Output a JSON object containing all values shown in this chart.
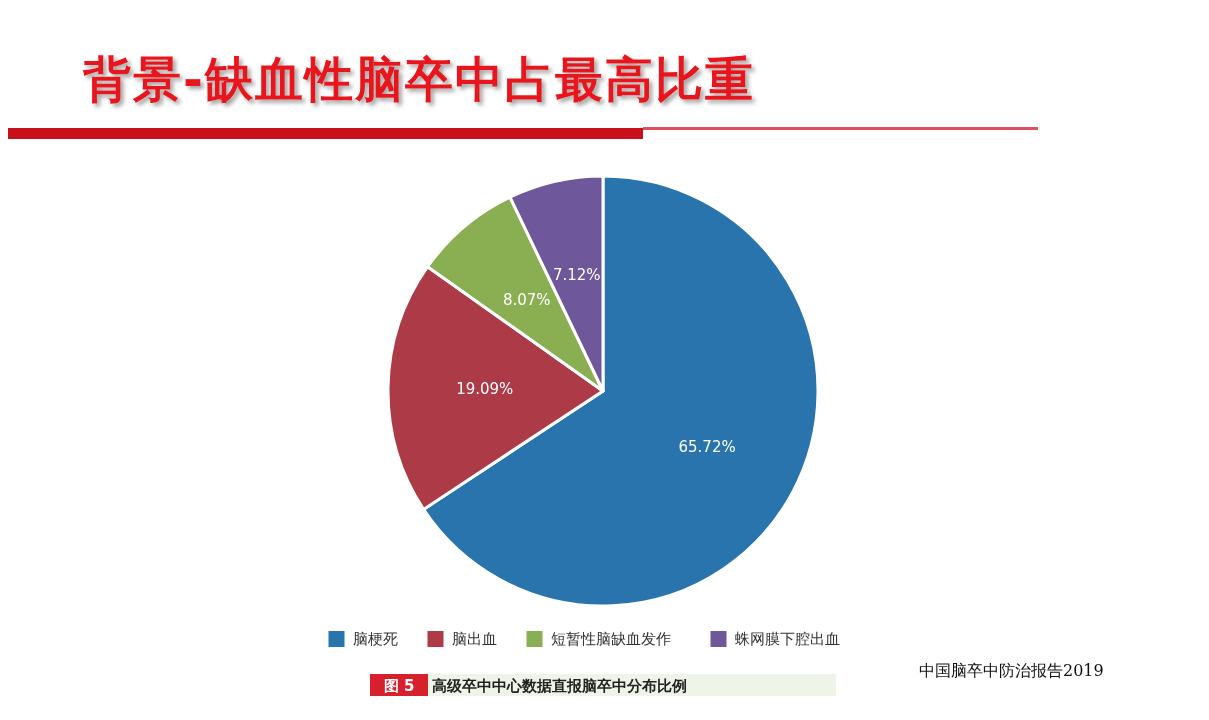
{
  "chart_data": {
    "type": "pie",
    "title": "背景-缺血性脑卒中占最高比重",
    "categories": [
      "脑梗死",
      "脑出血",
      "短暂性脑缺血发作",
      "蛛网膜下腔出血"
    ],
    "values": [
      65.72,
      19.09,
      8.07,
      7.12
    ],
    "colors": [
      "#2a74ad",
      "#ad3a47",
      "#8aae52",
      "#6e579a"
    ],
    "value_labels": [
      "65.72%",
      "19.09%",
      "8.07%",
      "7.12%"
    ],
    "legend": "bottom",
    "annotations": [
      "图 5",
      "高级卒中中心数据直报脑卒中分布比例",
      "中国脑卒中防治报告2019"
    ]
  }
}
